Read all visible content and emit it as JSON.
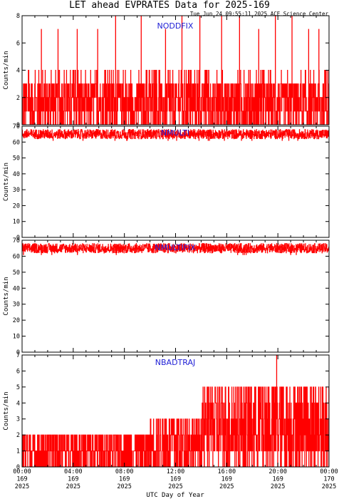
{
  "title": "LET ahead EVPRATES Data for 2025-169",
  "timestamp": "Tue Jun 24 09:55:11 2025 ACE Science Center",
  "xlabel": "UTC Day of Year",
  "colors": {
    "series": "#ff0000",
    "label": "#1f1fd6",
    "axis": "#000000"
  },
  "xticks": [
    {
      "time": "00:00",
      "doy": "169",
      "year": "2025"
    },
    {
      "time": "04:00",
      "doy": "169",
      "year": "2025"
    },
    {
      "time": "08:00",
      "doy": "169",
      "year": "2025"
    },
    {
      "time": "12:00",
      "doy": "169",
      "year": "2025"
    },
    {
      "time": "16:00",
      "doy": "169",
      "year": "2025"
    },
    {
      "time": "20:00",
      "doy": "169",
      "year": "2025"
    },
    {
      "time": "00:00",
      "doy": "170",
      "year": "2025"
    }
  ],
  "chart_data": [
    {
      "type": "line",
      "label": "NODDFIX",
      "ylabel": "Counts/min",
      "ylim": [
        0,
        8
      ],
      "yticks": [
        0,
        2,
        4,
        6,
        8
      ],
      "xlim_hours": [
        0,
        24
      ],
      "series": [
        {
          "baseline_range": [
            0,
            3
          ],
          "spikes_hours": [
            1.5,
            2.8,
            4.3,
            5.9,
            7.3,
            9.3,
            11.2,
            12.5,
            13.9,
            15.6,
            17.0,
            18.5,
            19.8,
            21.1,
            22.4,
            23.2
          ],
          "max_value": 8
        }
      ]
    },
    {
      "type": "line",
      "label": "NMULTI",
      "ylabel": "Counts/min",
      "ylim": [
        0,
        70
      ],
      "yticks": [
        0,
        10,
        20,
        30,
        40,
        50,
        60,
        70
      ],
      "xlim_hours": [
        0,
        24
      ],
      "series": [
        {
          "mean": 65,
          "range": [
            62,
            68
          ]
        }
      ]
    },
    {
      "type": "line",
      "label": "NMULTIFIX",
      "ylabel": "Counts/min",
      "ylim": [
        0,
        70
      ],
      "yticks": [
        0,
        10,
        20,
        30,
        40,
        50,
        60,
        70
      ],
      "xlim_hours": [
        0,
        24
      ],
      "series": [
        {
          "mean": 65,
          "range": [
            62,
            68
          ]
        }
      ]
    },
    {
      "type": "line",
      "label": "NBADTRAJ",
      "ylabel": "Counts/min",
      "ylim": [
        0,
        7
      ],
      "yticks": [
        0,
        1,
        2,
        3,
        4,
        5,
        6,
        7
      ],
      "xlim_hours": [
        0,
        24
      ],
      "series": [
        {
          "segments": [
            {
              "hours": [
                0,
                10
              ],
              "range": [
                0,
                2
              ]
            },
            {
              "hours": [
                10,
                14
              ],
              "range": [
                0,
                3
              ]
            },
            {
              "hours": [
                14,
                24
              ],
              "range": [
                0,
                5
              ]
            }
          ],
          "spikes_hours": [
            19.9
          ],
          "max_value": 7
        }
      ]
    }
  ]
}
